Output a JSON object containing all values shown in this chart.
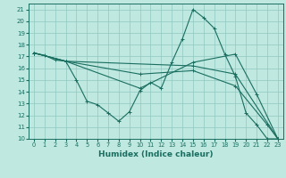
{
  "xlabel": "Humidex (Indice chaleur)",
  "xlim": [
    -0.5,
    23.5
  ],
  "ylim": [
    10,
    21.5
  ],
  "yticks": [
    10,
    11,
    12,
    13,
    14,
    15,
    16,
    17,
    18,
    19,
    20,
    21
  ],
  "xticks": [
    0,
    1,
    2,
    3,
    4,
    5,
    6,
    7,
    8,
    9,
    10,
    11,
    12,
    13,
    14,
    15,
    16,
    17,
    18,
    19,
    20,
    21,
    22,
    23
  ],
  "bg_color": "#bee8e0",
  "grid_color": "#90c8c0",
  "line_color": "#1a6e60",
  "lines": [
    {
      "x": [
        0,
        1,
        2,
        3,
        4,
        5,
        6,
        7,
        8,
        9,
        10,
        11,
        12,
        13,
        14,
        15,
        16,
        17,
        18,
        19,
        20,
        21,
        22,
        23
      ],
      "y": [
        17.3,
        17.1,
        16.7,
        16.6,
        15.0,
        13.2,
        12.9,
        12.2,
        11.5,
        12.3,
        14.1,
        14.8,
        14.3,
        16.5,
        18.5,
        21.0,
        20.3,
        19.4,
        17.2,
        15.3,
        12.2,
        11.2,
        10.0,
        10.0
      ]
    },
    {
      "x": [
        0,
        3,
        15,
        19,
        23
      ],
      "y": [
        17.3,
        16.6,
        16.2,
        15.5,
        10.0
      ]
    },
    {
      "x": [
        0,
        3,
        10,
        15,
        19,
        22,
        23
      ],
      "y": [
        17.3,
        16.6,
        15.5,
        15.8,
        14.5,
        11.2,
        10.0
      ]
    },
    {
      "x": [
        0,
        3,
        10,
        15,
        19,
        21,
        23
      ],
      "y": [
        17.3,
        16.6,
        14.3,
        16.5,
        17.2,
        13.8,
        10.0
      ]
    }
  ]
}
